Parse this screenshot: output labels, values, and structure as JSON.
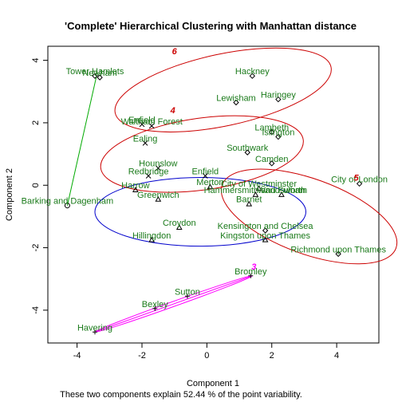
{
  "chart_data": {
    "type": "scatter",
    "title": "'Complete' Hierarchical Clustering with Manhattan distance",
    "xlabel": "Component 1",
    "ylabel": "Component 2",
    "subtitle": "These two components explain 52.44 % of the point variability.",
    "xlim": [
      -4.9,
      5.3
    ],
    "ylim": [
      -5.05,
      4.45
    ],
    "xticks": [
      -4,
      -2,
      0,
      2,
      4
    ],
    "yticks": [
      -4,
      -2,
      0,
      2,
      4
    ],
    "xtick_labels": [
      "-4",
      "-2",
      "0",
      "2",
      "4"
    ],
    "ytick_labels": [
      "-4",
      "-2",
      "0",
      "2",
      "4"
    ],
    "cluster_colors": {
      "1": "#0000cc",
      "2": "#00aa00",
      "3": "#ff00ff",
      "4": "#cc0000",
      "5": "#cc0000",
      "6": "#cc0000"
    },
    "label_color": "#1a7a1a",
    "points": [
      {
        "name": "Newham",
        "x": -3.3,
        "y": 3.45,
        "cluster": 2,
        "symbol": "diamond"
      },
      {
        "name": "Tower Hamlets",
        "x": -3.45,
        "y": 3.5,
        "cluster": 2,
        "symbol": "diamond"
      },
      {
        "name": "Barking and Dagenham",
        "x": -4.3,
        "y": -0.65,
        "cluster": 2,
        "symbol": "circle"
      },
      {
        "name": "Hackney",
        "x": 1.4,
        "y": 3.5,
        "cluster": 6,
        "symbol": "diamond"
      },
      {
        "name": "Haringey",
        "x": 2.2,
        "y": 2.75,
        "cluster": 6,
        "symbol": "diamond"
      },
      {
        "name": "Lewisham",
        "x": 0.9,
        "y": 2.65,
        "cluster": 6,
        "symbol": "diamond"
      },
      {
        "name": "Lambeth",
        "x": 2.0,
        "y": 1.7,
        "cluster": 6,
        "symbol": "diamond"
      },
      {
        "name": "Islington",
        "x": 2.2,
        "y": 1.55,
        "cluster": 6,
        "symbol": "diamond"
      },
      {
        "name": "Waltham Forest",
        "x": -1.7,
        "y": 1.9,
        "cluster": 4,
        "symbol": "cross"
      },
      {
        "name": "Enfield",
        "x": -2.0,
        "y": 1.95,
        "cluster": 4,
        "symbol": "cross"
      },
      {
        "name": "Ealing",
        "x": -1.9,
        "y": 1.35,
        "cluster": 4,
        "symbol": "cross"
      },
      {
        "name": "Southwark",
        "x": 1.25,
        "y": 1.05,
        "cluster": 4,
        "symbol": "diamond"
      },
      {
        "name": "Camden",
        "x": 2.0,
        "y": 0.7,
        "cluster": 4,
        "symbol": "diamond"
      },
      {
        "name": "Hounslow",
        "x": -1.5,
        "y": 0.55,
        "cluster": 4,
        "symbol": "cross"
      },
      {
        "name": "Redbridge",
        "x": -1.8,
        "y": 0.3,
        "cluster": 4,
        "symbol": "cross"
      },
      {
        "name": "Enfield",
        "x": -0.05,
        "y": 0.3,
        "cluster": 4,
        "symbol": "cross"
      },
      {
        "name": "Harrow",
        "x": -2.2,
        "y": -0.15,
        "cluster": 1,
        "symbol": "triangle"
      },
      {
        "name": "Greenwich",
        "x": -1.5,
        "y": -0.45,
        "cluster": 1,
        "symbol": "triangle"
      },
      {
        "name": "Merton",
        "x": 0.1,
        "y": -0.05,
        "cluster": 1,
        "symbol": "triangle"
      },
      {
        "name": "City of Westminster",
        "x": 1.6,
        "y": -0.1,
        "cluster": 1,
        "symbol": "triangle"
      },
      {
        "name": "Hammersmith and Fulham",
        "x": 1.5,
        "y": -0.3,
        "cluster": 1,
        "symbol": "triangle"
      },
      {
        "name": "Wandsworth",
        "x": 2.3,
        "y": -0.3,
        "cluster": 1,
        "symbol": "triangle"
      },
      {
        "name": "Barnet",
        "x": 1.3,
        "y": -0.6,
        "cluster": 1,
        "symbol": "triangle"
      },
      {
        "name": "Croydon",
        "x": -0.85,
        "y": -1.35,
        "cluster": 1,
        "symbol": "triangle"
      },
      {
        "name": "Hillingdon",
        "x": -1.7,
        "y": -1.75,
        "cluster": 1,
        "symbol": "triangle"
      },
      {
        "name": "Kensington and Chelsea",
        "x": 1.8,
        "y": -1.45,
        "cluster": 5,
        "symbol": "diamond"
      },
      {
        "name": "Kingston upon Thames",
        "x": 1.8,
        "y": -1.75,
        "cluster": 1,
        "symbol": "triangle"
      },
      {
        "name": "City of London",
        "x": 4.7,
        "y": 0.05,
        "cluster": 5,
        "symbol": "diamond"
      },
      {
        "name": "Richmond upon Thames",
        "x": 4.05,
        "y": -2.2,
        "cluster": 5,
        "symbol": "diamond"
      },
      {
        "name": "Bromley",
        "x": 1.35,
        "y": -2.9,
        "cluster": 3,
        "symbol": "plus"
      },
      {
        "name": "Sutton",
        "x": -0.6,
        "y": -3.55,
        "cluster": 3,
        "symbol": "plus"
      },
      {
        "name": "Bexley",
        "x": -1.6,
        "y": -3.95,
        "cluster": 3,
        "symbol": "plus"
      },
      {
        "name": "Havering",
        "x": -3.45,
        "y": -4.7,
        "cluster": 3,
        "symbol": "plus"
      }
    ],
    "ellipses": [
      {
        "id": "1",
        "color": "#0000cc",
        "cx": -0.2,
        "cy": -0.85,
        "rx": 3.25,
        "ry": 1.1,
        "angle": 0,
        "label_x": null,
        "label_y": null
      },
      {
        "id": "4",
        "color": "#cc0000",
        "cx": -0.15,
        "cy": 1.0,
        "rx": 3.15,
        "ry": 1.15,
        "angle": -8,
        "label_x": -1.05,
        "label_y": 2.3
      },
      {
        "id": "6",
        "color": "#cc0000",
        "cx": 0.5,
        "cy": 3.05,
        "rx": 3.4,
        "ry": 1.15,
        "angle": -12,
        "label_x": -1.0,
        "label_y": 4.2
      },
      {
        "id": "5",
        "color": "#cc0000",
        "cx": 3.15,
        "cy": -1.0,
        "rx": 2.85,
        "ry": 1.2,
        "angle": 20,
        "label_x": 4.6,
        "label_y": 0.15
      }
    ],
    "segments": [
      {
        "id": "2",
        "color": "#00aa00",
        "x1": -4.3,
        "y1": -0.65,
        "x2": -3.4,
        "y2": 3.5
      },
      {
        "id": "3",
        "color": "#ff00ff",
        "x1": -3.45,
        "y1": -4.7,
        "x2": 1.4,
        "y2": -2.9,
        "width": 0.08,
        "label_x": 1.45,
        "label_y": -2.7
      }
    ]
  }
}
